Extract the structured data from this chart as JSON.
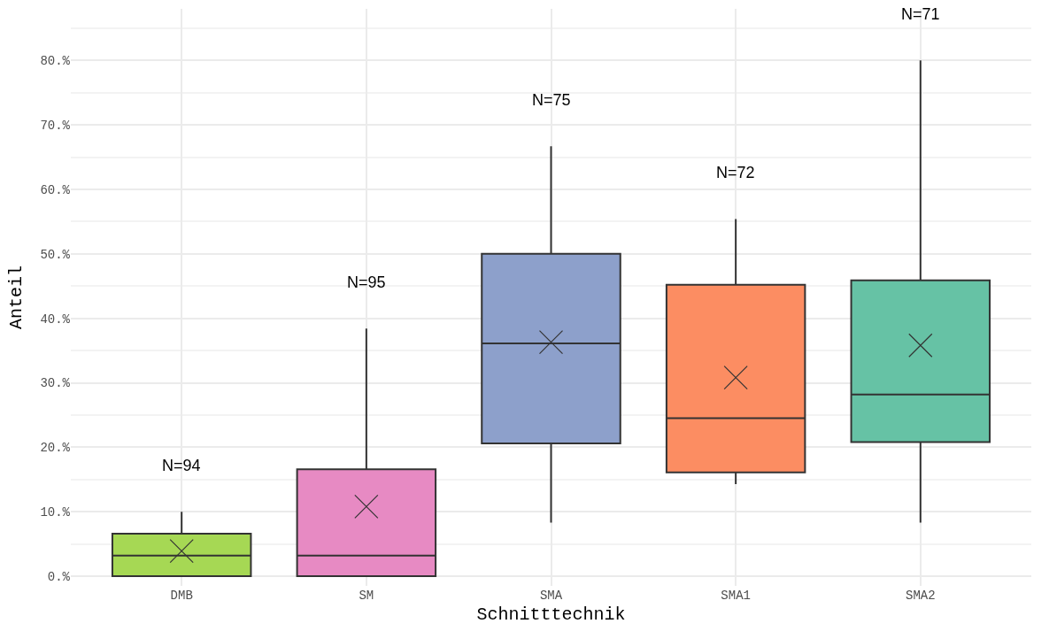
{
  "chart_data": {
    "type": "box",
    "xlabel": "Schnitttechnik",
    "ylabel": "Anteil",
    "categories": [
      "DMB",
      "SM",
      "SMA",
      "SMA1",
      "SMA2"
    ],
    "colors": [
      "#a6d854",
      "#e78ac3",
      "#8da0cb",
      "#fc8d62",
      "#66c2a5"
    ],
    "boxes": [
      {
        "low": 0,
        "q1": 0,
        "median": 3.2,
        "q3": 6.6,
        "high": 10,
        "mean": 3.9
      },
      {
        "low": 0,
        "q1": 0,
        "median": 3.2,
        "q3": 16.6,
        "high": 38.4,
        "mean": 10.8
      },
      {
        "low": 8.3,
        "q1": 20.6,
        "median": 36.1,
        "q3": 50,
        "high": 66.7,
        "mean": 36.3
      },
      {
        "low": 14.3,
        "q1": 16.1,
        "median": 24.5,
        "q3": 45.2,
        "high": 55.4,
        "mean": 30.8
      },
      {
        "low": 8.3,
        "q1": 20.8,
        "median": 28.2,
        "q3": 45.9,
        "high": 80,
        "mean": 35.8
      }
    ],
    "annotations": [
      "N=94",
      "N=95",
      "N=75",
      "N=72",
      "N=71"
    ],
    "ylim": [
      -1.5,
      88
    ],
    "yticks": [
      {
        "value": 0,
        "label": "0.%"
      },
      {
        "value": 10,
        "label": "10.%"
      },
      {
        "value": 20,
        "label": "20.%"
      },
      {
        "value": 30,
        "label": "30.%"
      },
      {
        "value": 40,
        "label": "40.%"
      },
      {
        "value": 50,
        "label": "50.%"
      },
      {
        "value": 60,
        "label": "60.%"
      },
      {
        "value": 70,
        "label": "70.%"
      },
      {
        "value": 80,
        "label": "80.%"
      }
    ],
    "grid": true,
    "marker": "cross"
  }
}
